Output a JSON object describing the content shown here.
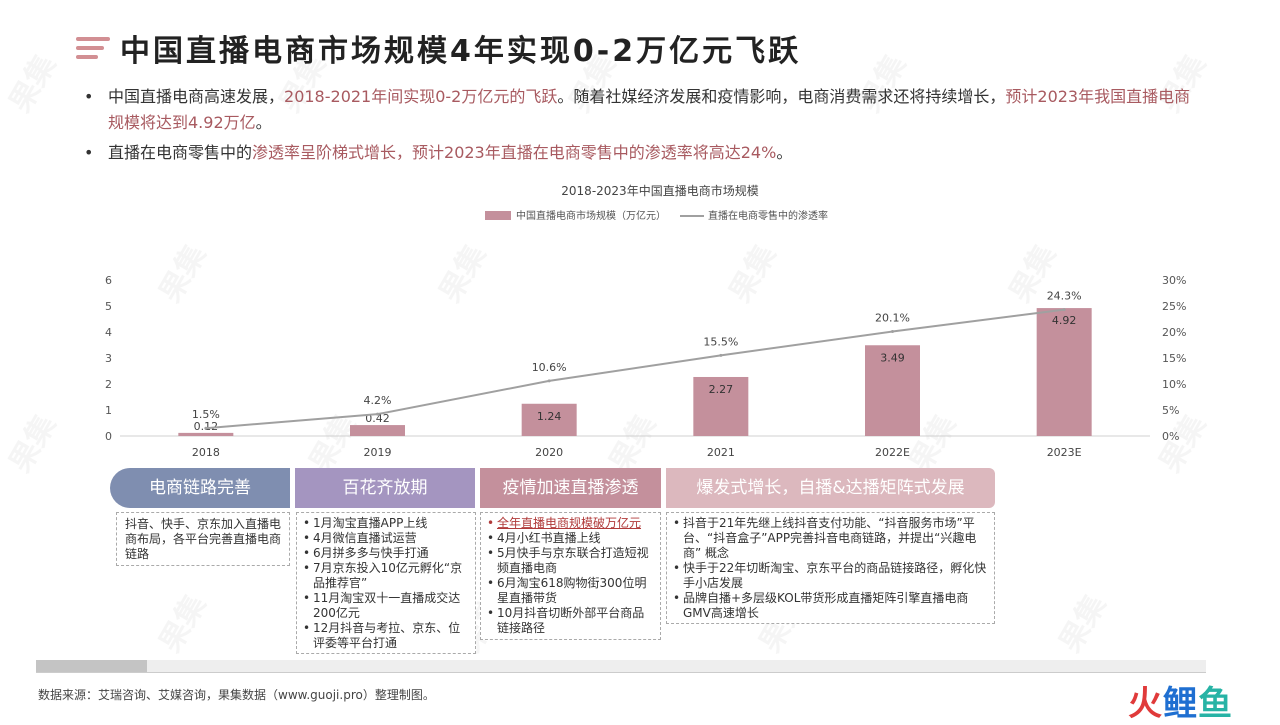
{
  "title": "中国直播电商市场规模4年实现0-2万亿元飞跃",
  "bullets": [
    {
      "parts": [
        {
          "text": "中国直播电商高速发展，",
          "highlight": false
        },
        {
          "text": "2018-2021年间实现0-2万亿元的飞跃",
          "highlight": true
        },
        {
          "text": "。随着社媒经济发展和疫情影响，电商消费需求还将持续增长，",
          "highlight": false
        },
        {
          "text": "预计2023年我国直播电商规模将达到4.92万亿",
          "highlight": true
        },
        {
          "text": "。",
          "highlight": false
        }
      ]
    },
    {
      "parts": [
        {
          "text": "直播在电商零售中的",
          "highlight": false
        },
        {
          "text": "渗透率呈阶梯式增长，预计2023年直播在电商零售中的渗透率将高达24%",
          "highlight": true
        },
        {
          "text": "。",
          "highlight": false
        }
      ]
    }
  ],
  "chart_data": {
    "type": "bar",
    "title": "2018-2023年中国直播电商市场规模",
    "categories": [
      "2018",
      "2019",
      "2020",
      "2021",
      "2022E",
      "2023E"
    ],
    "series": [
      {
        "name": "中国直播电商市场规模（万亿元）",
        "type": "bar",
        "axis": "left",
        "values": [
          0.12,
          0.42,
          1.24,
          2.27,
          3.49,
          4.92
        ],
        "labels": [
          "0.12",
          "0.42",
          "1.24",
          "2.27",
          "3.49",
          "4.92"
        ],
        "color": "#c4909c"
      },
      {
        "name": "直播在电商零售中的渗透率",
        "type": "line",
        "axis": "right",
        "values": [
          1.5,
          4.2,
          10.6,
          15.5,
          20.1,
          24.3
        ],
        "labels": [
          "1.5%",
          "4.2%",
          "10.6%",
          "15.5%",
          "20.1%",
          "24.3%"
        ],
        "color": "#a0a0a0"
      }
    ],
    "ylim_left": [
      0,
      6
    ],
    "yticks_left": [
      "0",
      "1",
      "2",
      "3",
      "4",
      "5",
      "6"
    ],
    "ylim_right": [
      0,
      30
    ],
    "yticks_right": [
      "0%",
      "5%",
      "10%",
      "15%",
      "20%",
      "25%",
      "30%"
    ],
    "legend_position": "top-center",
    "grid": false
  },
  "phases": [
    {
      "title": "电商链路完善",
      "color": "#7f8eb0",
      "items": [
        "抖音、快手、京东加入直播电商布局，各平台完善直播电商链路"
      ],
      "bullet_style": false
    },
    {
      "title": "百花齐放期",
      "color": "#a495c0",
      "items": [
        "1月淘宝直播APP上线",
        "4月微信直播试运营",
        "6月拼多多与快手打通",
        "7月京东投入10亿元孵化“京品推荐官”",
        "11月淘宝双十一直播成交达200亿元",
        "12月抖音与考拉、京东、位评委等平台打通"
      ],
      "bullet_style": true
    },
    {
      "title": "疫情加速直播渗透",
      "color": "#c4909c",
      "items": [
        "全年直播电商规模破万亿元",
        "4月小红书直播上线",
        "5月快手与京东联合打造短视频直播电商",
        "6月淘宝618购物街300位明星直播带货",
        "10月抖音切断外部平台商品链接路径"
      ],
      "bullet_style": true,
      "highlight_first": true
    },
    {
      "title": "爆发式增长，自播&达播矩阵式发展",
      "color": "#dcb8be",
      "items": [
        "抖音于21年先继上线抖音支付功能、“抖音服务市场”平台、“抖音盒子”APP完善抖音电商链路，并提出“兴趣电商” 概念",
        "快手于22年切断淘宝、京东平台的商品链接路径，孵化快手小店发展",
        "品牌自播+多层级KOL带货形成直播矩阵引擎直播电商GMV高速增长"
      ],
      "bullet_style": true
    }
  ],
  "progress": {
    "value": 0.095
  },
  "source": "数据来源：艾瑞咨询、艾媒咨询，果集数据（www.guoji.pro）整理制图。",
  "logo": {
    "char1": "火",
    "char2": "鲤",
    "char3": "鱼"
  },
  "watermark": "果集"
}
